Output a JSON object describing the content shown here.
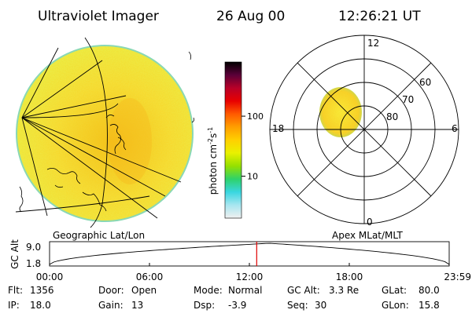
{
  "header": {
    "instrument": "Ultraviolet Imager",
    "date": "26 Aug 00",
    "time": "12:26:21 UT"
  },
  "left_panel": {
    "caption": "Geographic Lat/Lon"
  },
  "colorbar": {
    "unit_label": "photon cm",
    "exp1": "-2",
    "mid": "s",
    "exp2": "-1",
    "tick_labels": [
      "100",
      "10"
    ],
    "tick_values": [
      100,
      10
    ],
    "range": [
      2,
      800
    ],
    "scale": "log",
    "colors": [
      "#f0f0f0",
      "#a8e6f0",
      "#39d6e0",
      "#2ed26a",
      "#95e000",
      "#e9f100",
      "#ffd000",
      "#ff9f00",
      "#ff5a00",
      "#e80000",
      "#b80028",
      "#5a0038",
      "#000000"
    ]
  },
  "right_panel": {
    "caption": "Apex MLat/MLT",
    "mlt_labels": {
      "top": "12",
      "right": "6",
      "bottom": "0",
      "left": "18"
    },
    "lat_labels": [
      "60",
      "70",
      "80"
    ]
  },
  "timeline": {
    "ylabel": "GC Alt",
    "y_ticks": [
      "9.0",
      "1.8"
    ],
    "x_ticks": [
      "00:00",
      "06:00",
      "12:00",
      "18:00",
      "23:59"
    ],
    "x_tick_hours": [
      0,
      6,
      12,
      18,
      24
    ],
    "marker_time_hours": 12.44,
    "orbit_min_hours": 13.2
  },
  "info": {
    "row1": [
      {
        "key": "Flt:",
        "value": "1356"
      },
      {
        "key": "Door:",
        "value": "Open"
      },
      {
        "key": "Mode:",
        "value": "Normal"
      },
      {
        "key": "GC Alt:",
        "value": "3.3 Re"
      },
      {
        "key": "GLat:",
        "value": "80.0"
      }
    ],
    "row2": [
      {
        "key": "IP:",
        "value": "18.0"
      },
      {
        "key": "Gain:",
        "value": "13"
      },
      {
        "key": "Dsp:",
        "value": "-3.9"
      },
      {
        "key": "Seq:",
        "value": "30"
      },
      {
        "key": "GLon:",
        "value": "15.8"
      }
    ]
  },
  "colors": {
    "marker": "#e00000",
    "disk_fill": "#f4e03a",
    "disk_rim": "#7fd6b0",
    "accent_orange": "#ff9f00"
  }
}
